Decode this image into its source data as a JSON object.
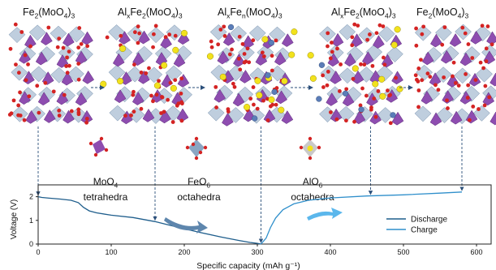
{
  "phases": [
    {
      "parts": [
        [
          "Fe",
          "2"
        ],
        [
          "(MoO",
          "4"
        ],
        [
          ")",
          "3"
        ]
      ]
    },
    {
      "parts": [
        [
          "Al",
          "x"
        ],
        [
          "Fe",
          "2"
        ],
        [
          "(MoO",
          "4"
        ],
        [
          ")",
          "3"
        ]
      ]
    },
    {
      "parts": [
        [
          "Al",
          "x"
        ],
        [
          "Fe",
          "n"
        ],
        [
          "(MoO",
          "4"
        ],
        [
          ")",
          "3"
        ]
      ]
    },
    {
      "parts": [
        [
          "Al",
          "x"
        ],
        [
          "Fe",
          "2"
        ],
        [
          "(MoO",
          "4"
        ],
        [
          ")",
          "3"
        ]
      ]
    },
    {
      "parts": [
        [
          "Fe",
          "2"
        ],
        [
          "(MoO",
          "4"
        ],
        [
          ")",
          "3"
        ]
      ]
    }
  ],
  "polyhedra": [
    {
      "line1": [
        [
          "MoO",
          "4"
        ]
      ],
      "line2": "tetrahedra"
    },
    {
      "line1": [
        [
          "FeO",
          "6"
        ]
      ],
      "line2": "octahedra"
    },
    {
      "line1": [
        [
          "AlO",
          "6"
        ]
      ],
      "line2": "octahedra"
    }
  ],
  "chart_data": {
    "type": "line",
    "xlabel": "Specific capacity (mAh g⁻¹)",
    "ylabel": "Voltage (V)",
    "xlim": [
      0,
      620
    ],
    "ylim": [
      0,
      2.5
    ],
    "xticks": [
      0,
      100,
      200,
      300,
      400,
      500,
      600
    ],
    "yticks": [
      0,
      1,
      2
    ],
    "legend_position": "bottom-right",
    "series": [
      {
        "name": "Discharge",
        "color": "#1f5e8c",
        "x": [
          0,
          5,
          15,
          30,
          45,
          55,
          62,
          70,
          80,
          100,
          130,
          160,
          190,
          220,
          250,
          275,
          290,
          300,
          305
        ],
        "y": [
          2.0,
          1.97,
          1.94,
          1.9,
          1.85,
          1.75,
          1.55,
          1.4,
          1.32,
          1.22,
          1.12,
          0.95,
          0.72,
          0.5,
          0.3,
          0.15,
          0.07,
          0.03,
          0.0
        ]
      },
      {
        "name": "Charge",
        "color": "#2f8fcb",
        "x": [
          305,
          312,
          318,
          325,
          335,
          350,
          370,
          400,
          450,
          500,
          550,
          580
        ],
        "y": [
          0.0,
          0.25,
          0.7,
          1.1,
          1.45,
          1.7,
          1.85,
          1.95,
          2.03,
          2.08,
          2.15,
          2.2
        ]
      }
    ]
  },
  "arrows": [
    {
      "from_phase": 0,
      "capacity": 0
    },
    {
      "from_phase": 1,
      "capacity": 160
    },
    {
      "from_phase": 2,
      "capacity": 305
    },
    {
      "from_phase": 3,
      "capacity": 455
    },
    {
      "from_phase": 4,
      "capacity": 580
    }
  ],
  "colors": {
    "mo_polyhedra": "#8e4db0",
    "fe_polyhedra": "#8aa6c3",
    "oxygen": "#d42323",
    "aluminum": "#f2e21c",
    "axis": "#222222",
    "guide_arrow": "#2b4f7a",
    "discharge_trend_arrow": "#5e86ad",
    "charge_trend_arrow": "#5bb7ec"
  }
}
